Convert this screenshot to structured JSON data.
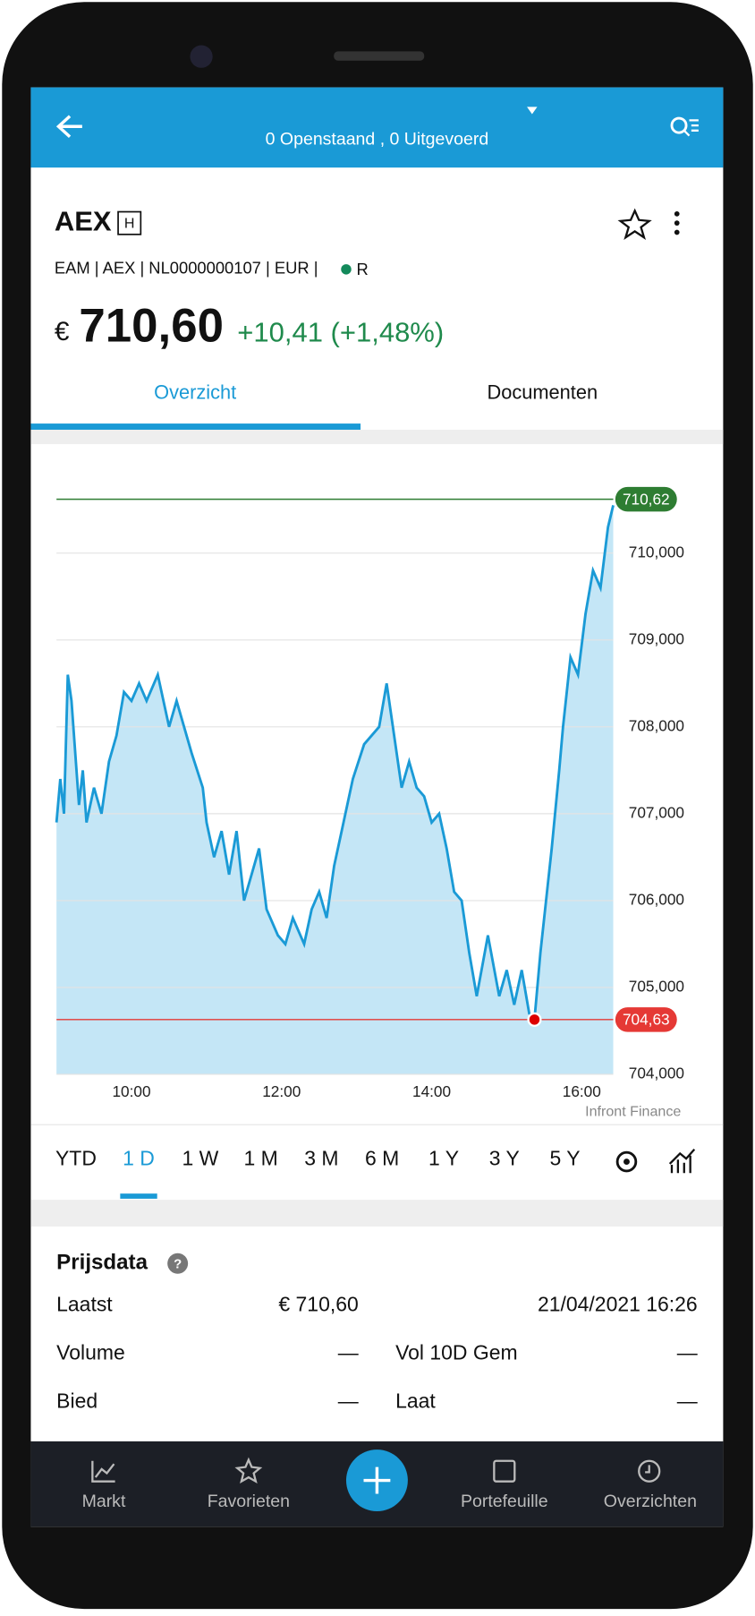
{
  "header": {
    "status": "0 Openstaand , 0 Uitgevoerd"
  },
  "instrument": {
    "symbol": "AEX",
    "badge": "H",
    "details": "EAM | AEX | NL0000000107 | EUR |",
    "status_code": "R",
    "currency": "€",
    "price": "710,60",
    "change": "+10,41 (+1,48%)"
  },
  "tabs": [
    "Overzicht",
    "Documenten"
  ],
  "chart_data": {
    "type": "line",
    "source": "Infront Finance",
    "x": [
      9.0,
      9.05,
      9.1,
      9.15,
      9.2,
      9.3,
      9.35,
      9.4,
      9.5,
      9.6,
      9.7,
      9.8,
      9.9,
      10.0,
      10.1,
      10.2,
      10.35,
      10.5,
      10.6,
      10.8,
      10.95,
      11.0,
      11.1,
      11.2,
      11.3,
      11.4,
      11.5,
      11.6,
      11.7,
      11.8,
      11.95,
      12.05,
      12.15,
      12.3,
      12.4,
      12.5,
      12.6,
      12.7,
      12.8,
      12.95,
      13.1,
      13.3,
      13.4,
      13.5,
      13.6,
      13.7,
      13.8,
      13.9,
      14.0,
      14.1,
      14.2,
      14.3,
      14.4,
      14.5,
      14.6,
      14.75,
      14.9,
      15.0,
      15.1,
      15.2,
      15.3,
      15.37,
      15.45,
      15.6,
      15.7,
      15.75,
      15.85,
      15.95,
      16.05,
      16.15,
      16.25,
      16.35,
      16.42
    ],
    "series": [
      {
        "color": "#1a9ad6",
        "fill": "#c4e6f6",
        "values": [
          706.9,
          707.4,
          707.0,
          708.6,
          708.3,
          707.1,
          707.5,
          706.9,
          707.3,
          707.0,
          707.6,
          707.9,
          708.4,
          708.3,
          708.5,
          708.3,
          708.6,
          708.0,
          708.3,
          707.7,
          707.3,
          706.9,
          706.5,
          706.8,
          706.3,
          706.8,
          706.0,
          706.3,
          706.6,
          705.9,
          705.6,
          705.5,
          705.8,
          705.5,
          705.9,
          706.1,
          705.8,
          706.4,
          706.8,
          707.4,
          707.8,
          708.0,
          708.5,
          707.9,
          707.3,
          707.6,
          707.3,
          707.2,
          706.9,
          707.0,
          706.6,
          706.1,
          706.0,
          705.4,
          704.9,
          705.6,
          704.9,
          705.2,
          704.8,
          705.2,
          704.7,
          704.63,
          705.4,
          706.6,
          707.5,
          708.0,
          708.8,
          708.6,
          709.3,
          709.8,
          709.6,
          710.3,
          710.55
        ]
      }
    ],
    "xlim": [
      9,
      16.42
    ],
    "ylim": [
      704,
      711
    ],
    "xticks": [
      {
        "value": 10,
        "label": "10:00"
      },
      {
        "value": 12,
        "label": "12:00"
      },
      {
        "value": 14,
        "label": "14:00"
      },
      {
        "value": 16,
        "label": "16:00"
      }
    ],
    "yticks": [
      {
        "value": 704,
        "label": "704,000"
      },
      {
        "value": 705,
        "label": "705,000"
      },
      {
        "value": 706,
        "label": "706,000"
      },
      {
        "value": 707,
        "label": "707,000"
      },
      {
        "value": 708,
        "label": "708,000"
      },
      {
        "value": 709,
        "label": "709,000"
      },
      {
        "value": 710,
        "label": "710,000"
      }
    ],
    "grid": true,
    "reference_lines": [
      {
        "value": 710.62,
        "label": "710,62",
        "color": "#2e7d32"
      },
      {
        "value": 704.63,
        "label": "704,63",
        "color": "#e53935"
      }
    ]
  },
  "ranges": [
    "YTD",
    "1 D",
    "1 W",
    "1 M",
    "3 M",
    "6 M",
    "1 Y",
    "3 Y",
    "5 Y"
  ],
  "price_data": {
    "title": "Prijsdata",
    "rows": [
      [
        "Laatst",
        "€ 710,60",
        "21/04/2021 16:26"
      ],
      [
        "Volume",
        "—",
        "Vol 10D Gem",
        "—"
      ],
      [
        "Bied",
        "—",
        "Laat",
        "—"
      ]
    ]
  },
  "nav": [
    "Markt",
    "Favorieten",
    "Portefeuille",
    "Overzichten"
  ]
}
